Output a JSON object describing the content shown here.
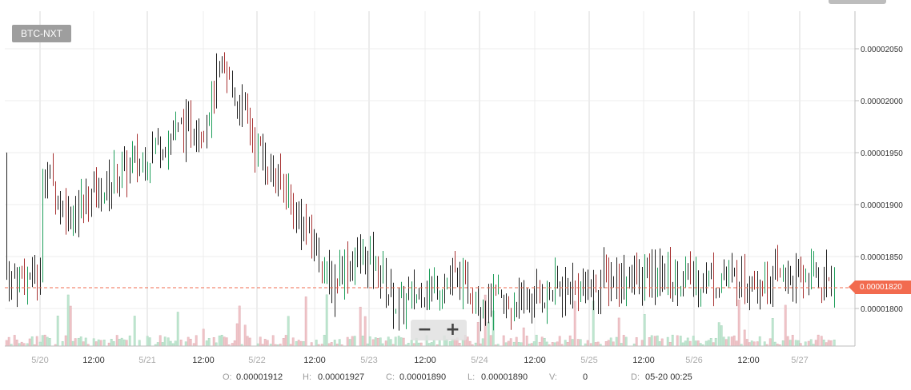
{
  "ticker": "BTC-NXT",
  "current_price_label": "0.00001820",
  "zoom": {
    "minus": "−",
    "plus": "+"
  },
  "ohlc": {
    "o_label": "O:",
    "o_value": "0.00001912",
    "h_label": "H:",
    "h_value": "0.00001927",
    "c_label": "C:",
    "c_value": "0.00001890",
    "l_label": "L:",
    "l_value": "0.00001890",
    "v_label": "V:",
    "v_value": "0",
    "d_label": "D:",
    "d_value": "05-20 00:25"
  },
  "colors": {
    "up": "#1e9e5a",
    "down": "#a83232",
    "neutral": "#222222",
    "price_line": "#f26b4f",
    "vol_up": "#bfe6d0",
    "vol_down": "#f0c4c8"
  },
  "chart_data": {
    "type": "ohlc",
    "title": "",
    "xlabel": "",
    "ylabel": "",
    "x_ticks": [
      "5/20",
      "12:00",
      "5/21",
      "12:00",
      "5/22",
      "12:00",
      "5/23",
      "12:00",
      "5/24",
      "12:00",
      "5/25",
      "12:00",
      "5/26",
      "12:00",
      "5/27"
    ],
    "y_ticks": [
      "0.00001800",
      "0.00001850",
      "0.00001900",
      "0.00001950",
      "0.00002000",
      "0.00002050"
    ],
    "ylim": [
      1.77e-05,
      2.08e-05
    ],
    "current_price": 1.82e-05,
    "grid": true,
    "anchors": [
      {
        "t": 0.0,
        "p": 1.94e-05
      },
      {
        "t": 0.5,
        "p": 1.89e-05
      },
      {
        "t": 1.0,
        "p": 1.91e-05
      },
      {
        "t": 1.5,
        "p": 1.93e-05
      },
      {
        "t": 2.0,
        "p": 1.95e-05
      },
      {
        "t": 2.5,
        "p": 1.97e-05
      },
      {
        "t": 3.0,
        "p": 1.98e-05
      },
      {
        "t": 3.3,
        "p": 2.03e-05
      },
      {
        "t": 3.5,
        "p": 2.01e-05
      },
      {
        "t": 4.0,
        "p": 1.95e-05
      },
      {
        "t": 4.5,
        "p": 1.91e-05
      },
      {
        "t": 5.0,
        "p": 1.86e-05
      },
      {
        "t": 5.3,
        "p": 1.82e-05
      },
      {
        "t": 5.5,
        "p": 1.84e-05
      },
      {
        "t": 6.0,
        "p": 1.85e-05
      },
      {
        "t": 6.3,
        "p": 1.82e-05
      },
      {
        "t": 6.5,
        "p": 1.8e-05
      },
      {
        "t": 7.0,
        "p": 1.82e-05
      },
      {
        "t": 7.5,
        "p": 1.83e-05
      },
      {
        "t": 8.0,
        "p": 1.81e-05
      },
      {
        "t": 8.5,
        "p": 1.8e-05
      },
      {
        "t": 9.0,
        "p": 1.81e-05
      },
      {
        "t": 9.5,
        "p": 1.82e-05
      },
      {
        "t": 10.0,
        "p": 1.82e-05
      },
      {
        "t": 10.3,
        "p": 1.83e-05
      }
    ]
  }
}
